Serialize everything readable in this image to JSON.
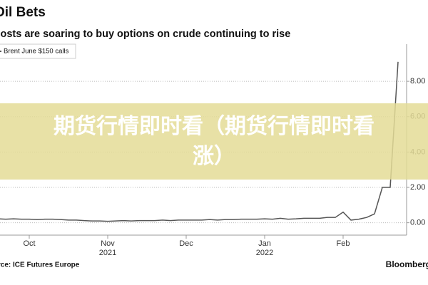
{
  "chart_data": {
    "type": "line",
    "title": "Oil Bets",
    "subtitle": "Costs are soaring to buy options on crude continuing to rise",
    "source": "Source: ICE Futures Europe",
    "brand": "Bloomberg",
    "overlay_text": "期货行情即时看（期货行情即时看涨）",
    "categories": [
      null,
      null,
      null,
      null,
      "Oct",
      null,
      null,
      null,
      null,
      null,
      null,
      null,
      null,
      null,
      "Nov",
      null,
      null,
      null,
      null,
      null,
      null,
      null,
      null,
      null,
      "Dec",
      null,
      null,
      null,
      null,
      null,
      null,
      null,
      null,
      null,
      "Jan",
      null,
      null,
      null,
      null,
      null,
      null,
      null,
      null,
      null,
      "Feb",
      null,
      null,
      null,
      null,
      null,
      null,
      null
    ],
    "category_years": [
      null,
      null,
      null,
      null,
      null,
      null,
      null,
      null,
      null,
      null,
      null,
      null,
      null,
      null,
      "2021",
      null,
      null,
      null,
      null,
      null,
      null,
      null,
      null,
      null,
      null,
      null,
      null,
      null,
      null,
      null,
      null,
      null,
      null,
      null,
      "2022",
      null,
      null,
      null,
      null,
      null,
      null,
      null,
      null,
      null,
      null,
      null,
      null,
      null,
      null,
      null,
      null,
      null
    ],
    "series": [
      {
        "name": "Brent June $150 calls",
        "color": "#555555",
        "values": [
          0.22,
          0.2,
          0.22,
          0.2,
          0.2,
          0.18,
          0.2,
          0.2,
          0.18,
          0.15,
          0.15,
          0.12,
          0.1,
          0.1,
          0.08,
          0.1,
          0.12,
          0.1,
          0.12,
          0.12,
          0.12,
          0.15,
          0.12,
          0.15,
          0.15,
          0.15,
          0.15,
          0.18,
          0.15,
          0.18,
          0.18,
          0.2,
          0.2,
          0.2,
          0.22,
          0.2,
          0.25,
          0.2,
          0.22,
          0.25,
          0.25,
          0.25,
          0.3,
          0.3,
          0.6,
          0.15,
          0.2,
          0.3,
          0.5,
          2.0,
          2.0,
          9.1
        ]
      }
    ],
    "ylim": [
      -0.7,
      10.1
    ],
    "yticks": [
      {
        "value": 0,
        "label": "0.00"
      },
      {
        "value": 2,
        "label": "2.00"
      },
      {
        "value": 4,
        "label": "4.00"
      },
      {
        "value": 6,
        "label": "6.00"
      },
      {
        "value": 8,
        "label": "8.00"
      }
    ],
    "grid": true
  }
}
